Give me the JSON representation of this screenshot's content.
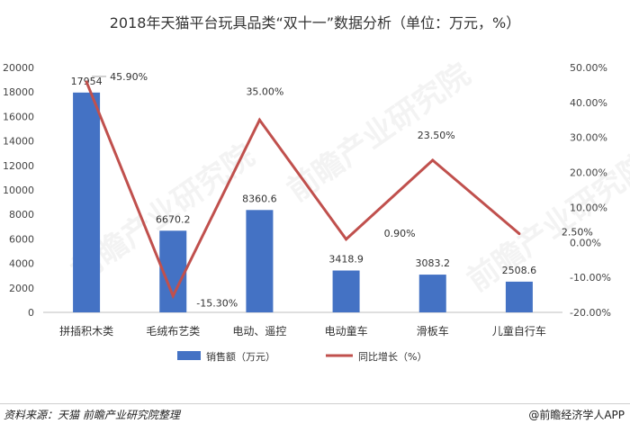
{
  "title": "2018年天猫平台玩具品类“双十一”数据分析（单位：万元，%）",
  "source": "资料来源：天猫  前瞻产业研究院整理",
  "brand": "@前瞻经济学人APP",
  "watermark": "前瞻产业研究院",
  "colors": {
    "bar": "#4472C4",
    "line": "#C0504D"
  },
  "chart_data": {
    "type": "bar",
    "categories": [
      "拼插积木类",
      "毛绒布艺类",
      "电动、遥控",
      "电动童车",
      "滑板车",
      "儿童自行车"
    ],
    "series": [
      {
        "name": "销售额（万元）",
        "type": "bar",
        "axis": "left",
        "values": [
          17954,
          6670.2,
          8360.6,
          3418.9,
          3083.2,
          2508.6
        ],
        "labels": [
          "17954",
          "6670.2",
          "8360.6",
          "3418.9",
          "3083.2",
          "2508.6"
        ]
      },
      {
        "name": "同比增长（%）",
        "type": "line",
        "axis": "right",
        "values": [
          45.9,
          -15.3,
          35.0,
          0.9,
          23.5,
          2.5
        ],
        "labels": [
          "45.90%",
          "-15.30%",
          "35.00%",
          "0.90%",
          "23.50%",
          "2.50%"
        ]
      }
    ],
    "y_left": {
      "min": 0,
      "max": 20000,
      "step": 2000,
      "ticks": [
        "0",
        "2000",
        "4000",
        "6000",
        "8000",
        "10000",
        "12000",
        "14000",
        "16000",
        "18000",
        "20000"
      ]
    },
    "y_right": {
      "min": -20,
      "max": 50,
      "step": 10,
      "ticks": [
        "-20.00%",
        "-10.00%",
        "0.00%",
        "10.00%",
        "20.00%",
        "30.00%",
        "40.00%",
        "50.00%"
      ]
    },
    "legend_position": "bottom"
  }
}
